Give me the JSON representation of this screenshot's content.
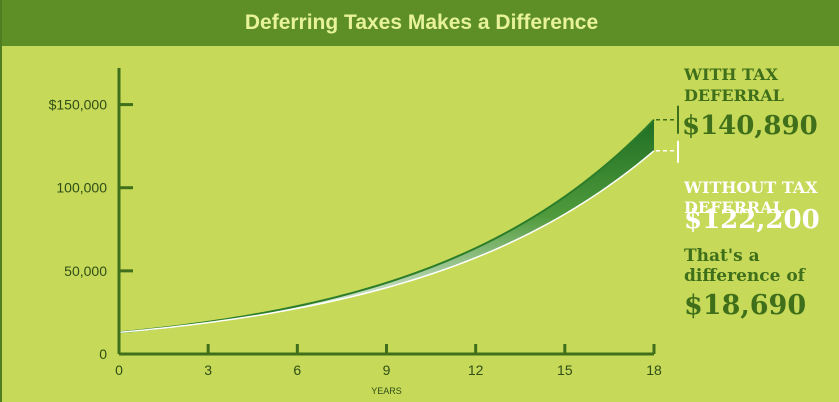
{
  "title": "Deferring Taxes Makes a Difference",
  "colors": {
    "title_bar": "#5e8f27",
    "background": "#c6d958",
    "dark_green": "#3f6f1a",
    "curve_with": "#2c7d2a",
    "curve_without": "#ffffff"
  },
  "callouts": {
    "with_label": "WITH TAX DEFERRAL",
    "with_value": "$140,890",
    "without_label": "WITHOUT TAX DEFERRAL",
    "without_value": "$122,200",
    "difference_label": "That's a difference of",
    "difference_value": "$18,690"
  },
  "chart_data": {
    "type": "area",
    "xlabel": "YEARS",
    "ylabel": "",
    "x_ticks": [
      0,
      3,
      6,
      9,
      12,
      15,
      18
    ],
    "y_ticks": [
      0,
      50000,
      100000,
      150000
    ],
    "y_tick_labels": [
      "0",
      "50,000",
      "100,000",
      "$150,000"
    ],
    "xlim": [
      0,
      18
    ],
    "ylim": [
      0,
      172000
    ],
    "grid": false,
    "series": [
      {
        "name": "WITH TAX DEFERRAL",
        "x": [
          0,
          18
        ],
        "y": [
          13000,
          140890
        ]
      },
      {
        "name": "WITHOUT TAX DEFERRAL",
        "x": [
          0,
          18
        ],
        "y": [
          13000,
          122200
        ]
      }
    ]
  }
}
